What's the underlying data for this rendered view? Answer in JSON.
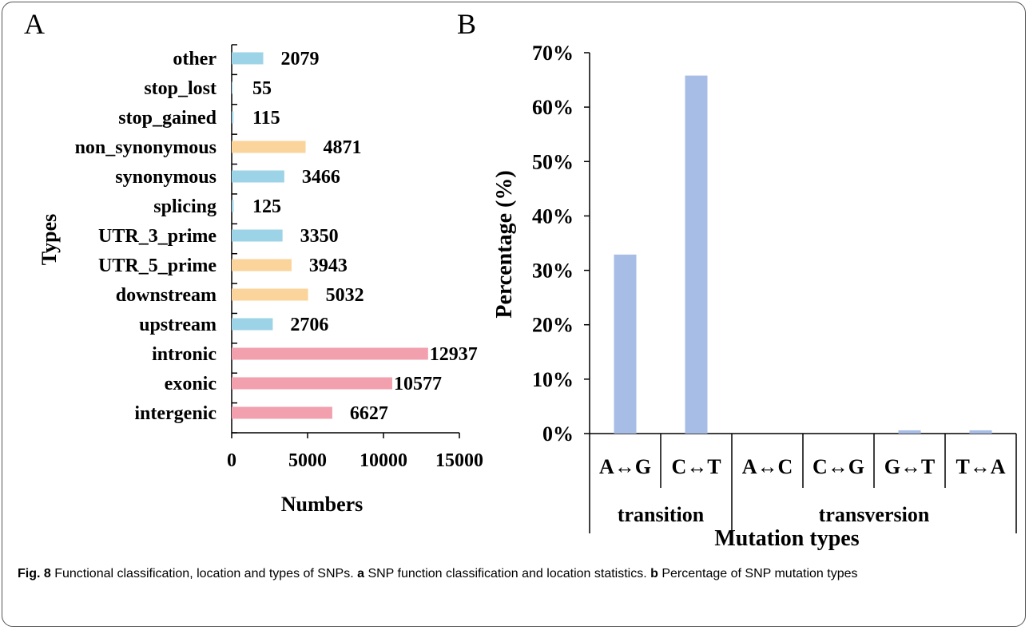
{
  "panels": {
    "a_letter": "A",
    "b_letter": "B"
  },
  "colors": {
    "blue": "#9dd3e6",
    "orange": "#fad49a",
    "pink": "#f2a0ae",
    "bar_b": "#a7bde5",
    "axis": "#000000"
  },
  "chart_data": [
    {
      "type": "bar",
      "orientation": "horizontal",
      "ylabel": "Types",
      "xlabel": "Numbers",
      "xlim": [
        0,
        15000
      ],
      "xticks": [
        "0",
        "5000",
        "10000",
        "15000"
      ],
      "categories": [
        "other",
        "stop_lost",
        "stop_gained",
        "non_synonymous",
        "synonymous",
        "splicing",
        "UTR_3_prime",
        "UTR_5_prime",
        "downstream",
        "upstream",
        "intronic",
        "exonic",
        "intergenic"
      ],
      "values": [
        2079,
        55,
        115,
        4871,
        3466,
        125,
        3350,
        3943,
        5032,
        2706,
        12937,
        10577,
        6627
      ],
      "value_labels": [
        "2079",
        "55",
        "115",
        "4871",
        "3466",
        "125",
        "3350",
        "3943",
        "5032",
        "2706",
        "12937",
        "10577",
        "6627"
      ],
      "bar_colors": [
        "blue",
        "blue",
        "blue",
        "orange",
        "blue",
        "blue",
        "blue",
        "orange",
        "orange",
        "blue",
        "pink",
        "pink",
        "pink"
      ],
      "grid": false
    },
    {
      "type": "bar",
      "ylabel": "Percentage (%)",
      "xlabel": "Mutation types",
      "ylim": [
        0,
        70
      ],
      "yticks": [
        "0%",
        "10%",
        "20%",
        "30%",
        "40%",
        "50%",
        "60%",
        "70%"
      ],
      "categories": [
        "A↔G",
        "C↔T",
        "A↔C",
        "C↔G",
        "G↔T",
        "T↔A"
      ],
      "values": [
        32.9,
        65.8,
        0.0,
        0.0,
        0.6,
        0.6
      ],
      "groups": [
        {
          "label": "transition",
          "span": 2
        },
        {
          "label": "transversion",
          "span": 4
        }
      ],
      "grid": false
    }
  ],
  "caption": {
    "fig_label": "Fig. 8",
    "fig_text": " Functional classification, location and types of SNPs. ",
    "a_label": "a",
    "a_text": " SNP function classification and location statistics. ",
    "b_label": "b",
    "b_text": " Percentage of SNP mutation types"
  }
}
